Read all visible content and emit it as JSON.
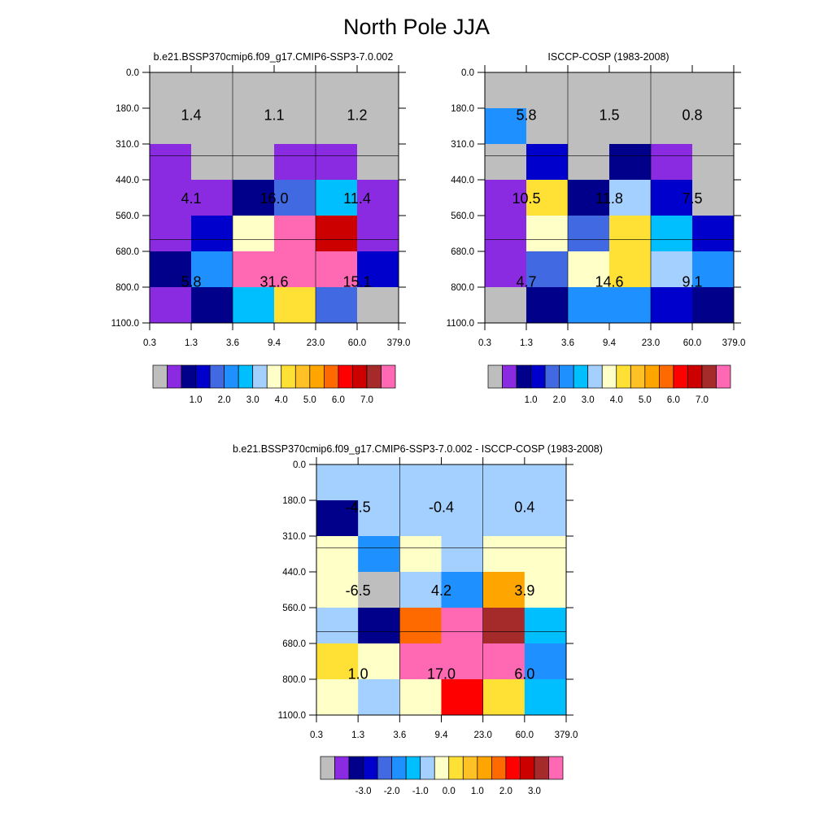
{
  "title": "North Pole JJA",
  "palettes": {
    "main": [
      "#BEBEBE",
      "#8A2BE2",
      "#00008B",
      "#0000CD",
      "#4169E1",
      "#1E90FF",
      "#00BFFF",
      "#A4D0FF",
      "#FFFFC8",
      "#FFE135",
      "#FFC125",
      "#FFA500",
      "#FF6A00",
      "#FF0000",
      "#CD0000",
      "#A52A2A",
      "#FF69B4"
    ],
    "diff": [
      "#BEBEBE",
      "#8A2BE2",
      "#00008B",
      "#0000CD",
      "#4169E1",
      "#1E90FF",
      "#00BFFF",
      "#A4D0FF",
      "#FFFFC8",
      "#FFE135",
      "#FFC125",
      "#FFA500",
      "#FF6A00",
      "#FF0000",
      "#CD0000",
      "#A52A2A",
      "#FF69B4"
    ]
  },
  "chart_data": [
    {
      "type": "heatmap",
      "title": "b.e21.BSSP370cmip6.f09_g17.CMIP6-SSP3-7.0.002",
      "x_ticks": [
        "0.3",
        "1.3",
        "3.6",
        "9.4",
        "23.0",
        "60.0",
        "379.0"
      ],
      "y_ticks": [
        "0.0",
        "180.0",
        "310.0",
        "440.0",
        "560.0",
        "680.0",
        "800.0",
        "1100.0"
      ],
      "cells": [
        [
          0,
          0,
          0,
          0,
          0,
          0
        ],
        [
          0,
          0,
          0,
          0,
          0,
          0
        ],
        [
          1,
          0,
          0,
          1,
          1,
          0
        ],
        [
          1,
          1,
          2,
          4,
          6,
          1
        ],
        [
          1,
          3,
          8,
          16,
          14,
          1
        ],
        [
          2,
          5,
          16,
          16,
          16,
          3
        ],
        [
          1,
          2,
          6,
          9,
          4,
          0
        ]
      ],
      "block_labels": [
        [
          "1.4",
          "1.1",
          "1.2"
        ],
        [
          "4.1",
          "16.0",
          "11.4"
        ],
        [
          "5.8",
          "31.6",
          "15.1"
        ]
      ],
      "colorbar_ticks": [
        "1.0",
        "2.0",
        "3.0",
        "4.0",
        "5.0",
        "6.0",
        "7.0"
      ],
      "palette": "main"
    },
    {
      "type": "heatmap",
      "title": "ISCCP-COSP (1983-2008)",
      "x_ticks": [
        "0.3",
        "1.3",
        "3.6",
        "9.4",
        "23.0",
        "60.0",
        "379.0"
      ],
      "y_ticks": [
        "0.0",
        "180.0",
        "310.0",
        "440.0",
        "560.0",
        "680.0",
        "800.0",
        "1100.0"
      ],
      "cells": [
        [
          0,
          0,
          0,
          0,
          0,
          0
        ],
        [
          5,
          0,
          0,
          0,
          0,
          0
        ],
        [
          0,
          3,
          0,
          2,
          1,
          0
        ],
        [
          1,
          9,
          2,
          7,
          3,
          0
        ],
        [
          1,
          8,
          4,
          9,
          6,
          3
        ],
        [
          1,
          4,
          8,
          9,
          7,
          5
        ],
        [
          0,
          2,
          5,
          5,
          3,
          2
        ]
      ],
      "block_labels": [
        [
          "5.8",
          "1.5",
          "0.8"
        ],
        [
          "10.5",
          "11.8",
          "7.5"
        ],
        [
          "4.7",
          "14.6",
          "9.1"
        ]
      ],
      "colorbar_ticks": [
        "1.0",
        "2.0",
        "3.0",
        "4.0",
        "5.0",
        "6.0",
        "7.0"
      ],
      "palette": "main"
    },
    {
      "type": "heatmap",
      "title": "b.e21.BSSP370cmip6.f09_g17.CMIP6-SSP3-7.0.002 - ISCCP-COSP (1983-2008)",
      "x_ticks": [
        "0.3",
        "1.3",
        "3.6",
        "9.4",
        "23.0",
        "60.0",
        "379.0"
      ],
      "y_ticks": [
        "0.0",
        "180.0",
        "310.0",
        "440.0",
        "560.0",
        "680.0",
        "800.0",
        "1100.0"
      ],
      "cells": [
        [
          7,
          7,
          7,
          7,
          7,
          7
        ],
        [
          2,
          7,
          7,
          7,
          7,
          7
        ],
        [
          8,
          5,
          8,
          7,
          8,
          8
        ],
        [
          8,
          0,
          7,
          5,
          11,
          8
        ],
        [
          7,
          2,
          12,
          16,
          15,
          6
        ],
        [
          9,
          8,
          16,
          16,
          16,
          5
        ],
        [
          8,
          7,
          8,
          13,
          9,
          6
        ]
      ],
      "block_labels": [
        [
          "-4.5",
          "-0.4",
          "0.4"
        ],
        [
          "-6.5",
          "4.2",
          "3.9"
        ],
        [
          "1.0",
          "17.0",
          "6.0"
        ]
      ],
      "colorbar_ticks": [
        "-3.0",
        "-2.0",
        "-1.0",
        "0.0",
        "1.0",
        "2.0",
        "3.0"
      ],
      "palette": "diff"
    }
  ]
}
